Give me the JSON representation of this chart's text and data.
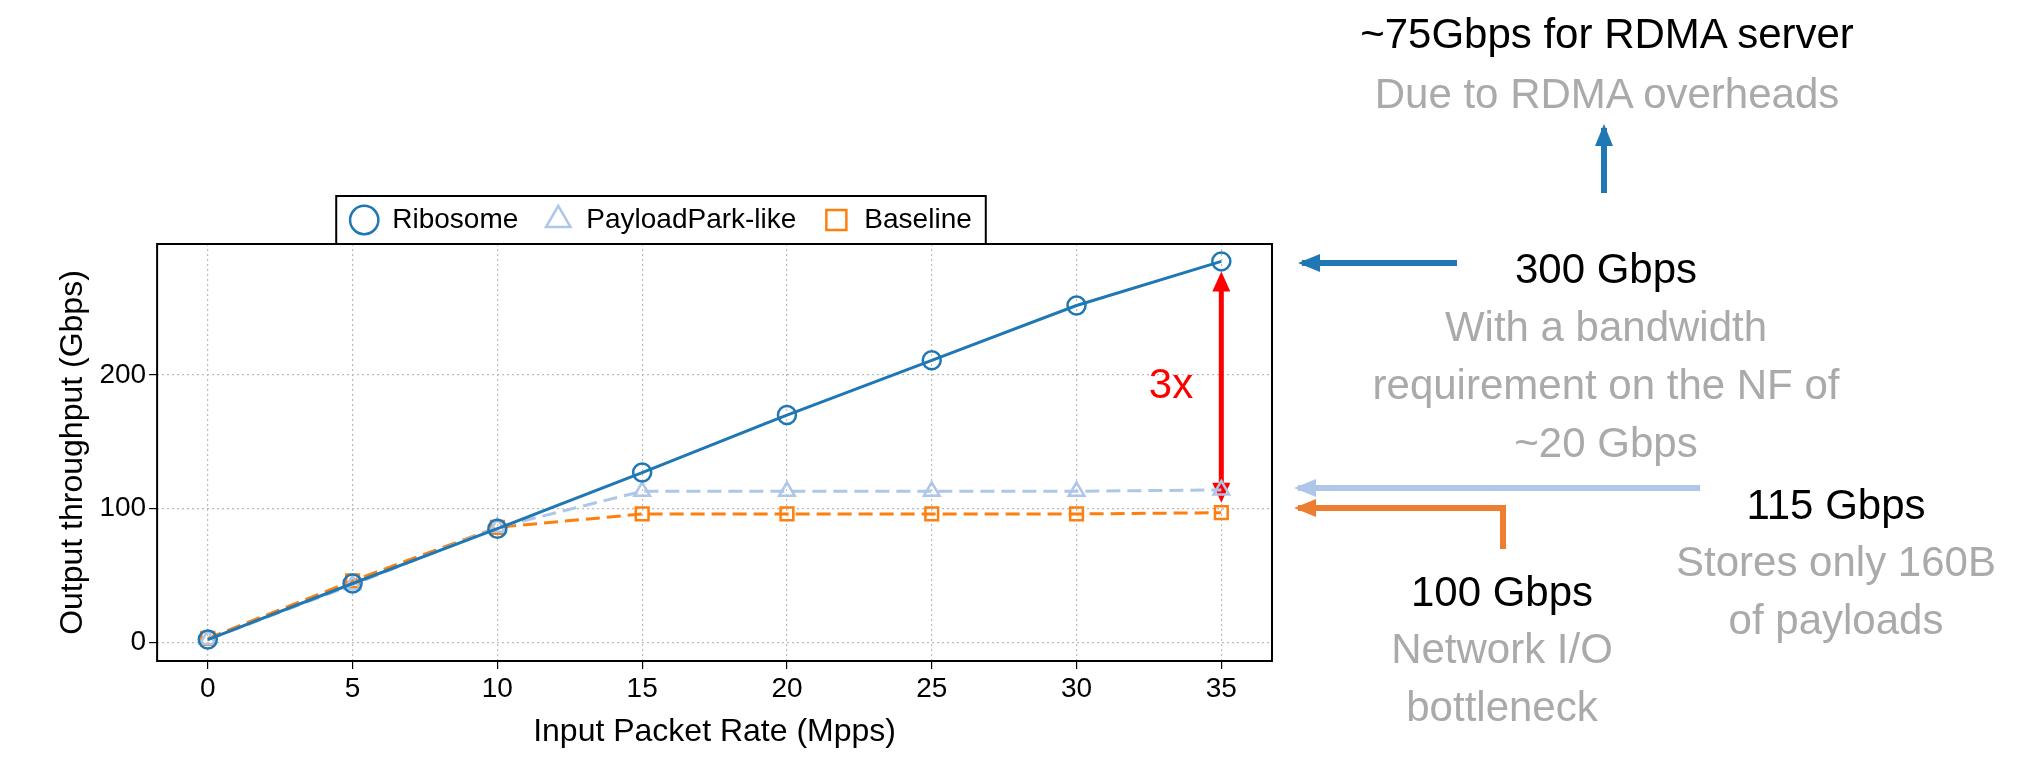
{
  "chart_data": {
    "type": "line",
    "xlabel": "Input Packet Rate (Mpps)",
    "ylabel": "Output throughput (Gbps)",
    "x": [
      0,
      5,
      10,
      15,
      20,
      25,
      30,
      35
    ],
    "series": [
      {
        "name": "Ribosome",
        "color": "#1f77b4",
        "marker": "circle",
        "line_style": "solid",
        "values": [
          2,
          44,
          85,
          127,
          170,
          211,
          252,
          285
        ]
      },
      {
        "name": "PayloadPark-like",
        "color": "#aec7e8",
        "marker": "triangle",
        "line_style": "dashed",
        "values": [
          2,
          43,
          86,
          113,
          113,
          113,
          113,
          114
        ]
      },
      {
        "name": "Baseline",
        "color": "#ff7f0e",
        "marker": "square",
        "line_style": "dashed",
        "values": [
          3,
          46,
          86,
          96,
          96,
          96,
          96,
          97
        ]
      }
    ],
    "xlim": [
      -1.75,
      36.75
    ],
    "xticks": [
      0,
      5,
      10,
      15,
      20,
      25,
      30,
      35
    ],
    "ylim": [
      -14,
      298
    ],
    "yticks": [
      0,
      100,
      200
    ],
    "grid": true,
    "legend": "top",
    "annotations": [
      "3x",
      "~75Gbps for RDMA server",
      "Due to RDMA overheads",
      "300 Gbps",
      "With a bandwidth\nrequirement on the NF of\n~20 Gbps",
      "115 Gbps",
      "Stores only 160B\nof payloads",
      "100 Gbps",
      "Network I/O\nbottleneck"
    ]
  }
}
